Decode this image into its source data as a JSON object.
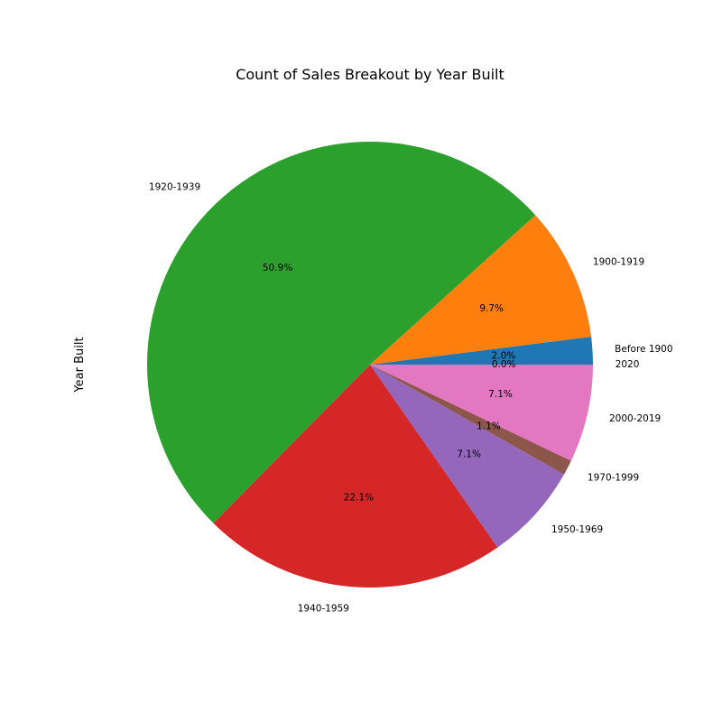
{
  "chart_data": {
    "type": "pie",
    "title": "Count of Sales Breakout by Year Built",
    "ylabel": "Year Built",
    "start_angle_deg": 0,
    "direction": "counterclockwise",
    "slices": [
      {
        "label": "Before 1900",
        "value": 2.0,
        "pct_label": "2.0%",
        "color": "#1f77b4"
      },
      {
        "label": "1900-1919",
        "value": 9.7,
        "pct_label": "9.7%",
        "color": "#ff7f0e"
      },
      {
        "label": "1920-1939",
        "value": 50.9,
        "pct_label": "50.9%",
        "color": "#2ca02c"
      },
      {
        "label": "1940-1959",
        "value": 22.1,
        "pct_label": "22.1%",
        "color": "#d62728"
      },
      {
        "label": "1950-1969",
        "value": 7.1,
        "pct_label": "7.1%",
        "color": "#9467bd"
      },
      {
        "label": "1970-1999",
        "value": 1.1,
        "pct_label": "1.1%",
        "color": "#8c564b"
      },
      {
        "label": "2000-2019",
        "value": 7.1,
        "pct_label": "7.1%",
        "color": "#e377c2"
      },
      {
        "label": "2020",
        "value": 0.0,
        "pct_label": "0.0%",
        "color": "#7f7f7f"
      }
    ]
  }
}
